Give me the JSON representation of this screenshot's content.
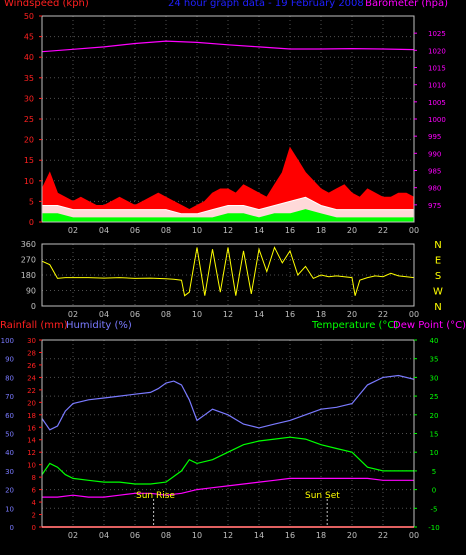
{
  "header": {
    "title": "24 hour graph data - 19 February 2008"
  },
  "colors": {
    "background": "#000000",
    "frame": "#c0c0c0",
    "grid": "#505050",
    "wind_axis": "#ff2020",
    "barometer_axis": "#ff00ff",
    "title": "#2020ff",
    "gust": "#ff0000",
    "wind_avg": "#ffffff",
    "wind_low": "#00ff00",
    "barometer": "#ff00ff",
    "direction": "#ffff00",
    "compass_labels": "#ffff00",
    "rainfall": "#ff2020",
    "humidity": "#7a7aff",
    "temperature": "#00ff00",
    "dewpoint": "#ff00ff",
    "rain_line": "#ff0000",
    "sun_label": "#ffff00"
  },
  "chart_data": [
    {
      "type": "line",
      "name": "wind-barometer-panel",
      "ylabel": "Windspeed (kph)",
      "y2label": "Barometer (hpa)",
      "ylim": [
        0,
        50
      ],
      "yticks": [
        "0",
        "5",
        "10",
        "15",
        "20",
        "25",
        "30",
        "35",
        "40",
        "45",
        "50"
      ],
      "y2lim": [
        970,
        1030
      ],
      "y2ticks": [
        "975",
        "980",
        "985",
        "990",
        "995",
        "1000",
        "1005",
        "1010",
        "1015",
        "1020",
        "1025"
      ],
      "xlim": [
        0,
        24
      ],
      "xticks": [
        "02",
        "04",
        "06",
        "08",
        "10",
        "12",
        "14",
        "16",
        "18",
        "20",
        "22",
        "00"
      ],
      "xtick_values": [
        2,
        4,
        6,
        8,
        10,
        12,
        14,
        16,
        18,
        20,
        22,
        24
      ],
      "series": [
        {
          "name": "Barometer",
          "axis": "y2",
          "x": [
            0,
            2,
            4,
            6,
            8,
            10,
            12,
            14,
            16,
            18,
            20,
            22,
            24
          ],
          "values": [
            1019.6,
            1020.3,
            1021.0,
            1022.0,
            1022.7,
            1022.3,
            1021.6,
            1021.0,
            1020.4,
            1020.4,
            1020.5,
            1020.4,
            1020.2
          ]
        },
        {
          "name": "Gust",
          "axis": "y",
          "x": [
            0,
            0.5,
            1,
            1.5,
            2,
            2.5,
            3,
            3.5,
            4,
            4.5,
            5,
            5.5,
            6,
            6.5,
            7,
            7.5,
            8,
            8.5,
            9,
            9.5,
            10,
            10.5,
            11,
            11.5,
            12,
            12.5,
            13,
            13.5,
            14,
            14.5,
            15,
            15.5,
            16,
            16.5,
            17,
            17.5,
            18,
            18.5,
            19,
            19.5,
            20,
            20.5,
            21,
            21.5,
            22,
            22.5,
            23,
            23.5,
            24
          ],
          "values": [
            8,
            12,
            7,
            6,
            5,
            6,
            5,
            4,
            4,
            5,
            6,
            5,
            4,
            5,
            6,
            7,
            6,
            5,
            4,
            3,
            4,
            5,
            7,
            8,
            8,
            7,
            9,
            8,
            7,
            6,
            9,
            12,
            18,
            15,
            12,
            10,
            8,
            7,
            8,
            9,
            7,
            6,
            8,
            7,
            6,
            6,
            7,
            7,
            6
          ]
        },
        {
          "name": "Average",
          "axis": "y",
          "x": [
            0,
            1,
            2,
            3,
            4,
            5,
            6,
            7,
            8,
            9,
            10,
            11,
            12,
            13,
            14,
            15,
            16,
            17,
            18,
            19,
            20,
            21,
            22,
            23,
            24
          ],
          "values": [
            4,
            4,
            3,
            3,
            3,
            3,
            3,
            3,
            3,
            2,
            2,
            3,
            4,
            4,
            3,
            4,
            5,
            6,
            4,
            3,
            3,
            3,
            3,
            3,
            3
          ]
        },
        {
          "name": "Low",
          "axis": "y",
          "x": [
            0,
            1,
            2,
            3,
            4,
            5,
            6,
            7,
            8,
            9,
            10,
            11,
            12,
            13,
            14,
            15,
            16,
            17,
            18,
            19,
            20,
            21,
            22,
            23,
            24
          ],
          "values": [
            2,
            2,
            1,
            1,
            1,
            1,
            1,
            1,
            1,
            1,
            1,
            1,
            2,
            2,
            1,
            2,
            2,
            3,
            2,
            1,
            1,
            1,
            1,
            1,
            1
          ]
        }
      ]
    },
    {
      "type": "line",
      "name": "wind-direction-panel",
      "ylim": [
        0,
        360
      ],
      "yticks": [
        "0",
        "90",
        "180",
        "270",
        "360"
      ],
      "y2ticks": [
        "N",
        "W",
        "S",
        "E",
        "N"
      ],
      "xlim": [
        0,
        24
      ],
      "xticks": [
        "02",
        "04",
        "06",
        "08",
        "10",
        "12",
        "14",
        "16",
        "18",
        "20",
        "22",
        "00"
      ],
      "xtick_values": [
        2,
        4,
        6,
        8,
        10,
        12,
        14,
        16,
        18,
        20,
        22,
        24
      ],
      "series": [
        {
          "name": "Direction",
          "x": [
            0,
            0.5,
            1,
            1.5,
            2,
            3,
            4,
            5,
            6,
            7,
            8,
            8.5,
            9,
            9.2,
            9.5,
            10,
            10.5,
            11,
            11.5,
            12,
            12.5,
            13,
            13.5,
            14,
            14.5,
            15,
            15.5,
            16,
            16.5,
            17,
            17.5,
            18,
            18.5,
            19,
            19.5,
            20,
            20.2,
            20.5,
            21,
            21.5,
            22,
            22.5,
            23,
            23.5,
            24
          ],
          "values": [
            260,
            240,
            160,
            165,
            165,
            165,
            162,
            165,
            160,
            162,
            158,
            155,
            150,
            60,
            80,
            340,
            60,
            330,
            80,
            340,
            60,
            320,
            70,
            330,
            200,
            340,
            250,
            320,
            180,
            230,
            160,
            180,
            170,
            175,
            170,
            165,
            60,
            150,
            165,
            175,
            170,
            190,
            175,
            170,
            165
          ]
        }
      ]
    },
    {
      "type": "line",
      "name": "temperature-humidity-panel",
      "ylabel": "Rainfall (mm)",
      "ylabel2": "Humidity (%)",
      "y2label": "Temperature (°C)",
      "y2label2": "Dew Point (°C)",
      "ylim": [
        0,
        30
      ],
      "yticks": [
        "0",
        "2",
        "4",
        "6",
        "8",
        "10",
        "12",
        "14",
        "16",
        "18",
        "20",
        "22",
        "24",
        "26",
        "28",
        "30"
      ],
      "humidity_lim": [
        0,
        100
      ],
      "humidity_ticks": [
        "0",
        "10",
        "20",
        "30",
        "40",
        "50",
        "60",
        "70",
        "80",
        "90",
        "100"
      ],
      "y2lim": [
        -10,
        40
      ],
      "y2ticks": [
        "-10",
        "-5",
        "0",
        "5",
        "10",
        "15",
        "20",
        "25",
        "30",
        "35",
        "40"
      ],
      "xlim": [
        0,
        24
      ],
      "xticks": [
        "02",
        "04",
        "06",
        "08",
        "10",
        "12",
        "14",
        "16",
        "18",
        "20",
        "22",
        "00"
      ],
      "xtick_values": [
        2,
        4,
        6,
        8,
        10,
        12,
        14,
        16,
        18,
        20,
        22,
        24
      ],
      "annotations": [
        {
          "label": "Sun Rise",
          "x": 7.2
        },
        {
          "label": "Sun Set",
          "x": 18.4
        }
      ],
      "series": [
        {
          "name": "Humidity",
          "axis": "humidity",
          "x": [
            0,
            0.5,
            1,
            1.5,
            2,
            3,
            4,
            5,
            6,
            7,
            7.5,
            8,
            8.5,
            9,
            9.5,
            10,
            10.5,
            11,
            12,
            13,
            14,
            15,
            16,
            17,
            18,
            19,
            19.5,
            20,
            21,
            22,
            23,
            24
          ],
          "values": [
            58,
            52,
            54,
            62,
            66,
            68,
            69,
            70,
            71,
            72,
            74,
            77,
            78,
            76,
            68,
            57,
            60,
            63,
            60,
            55,
            53,
            55,
            57,
            60,
            63,
            64,
            65,
            66,
            76,
            80,
            81,
            79
          ]
        },
        {
          "name": "Temperature",
          "axis": "y2",
          "x": [
            0,
            0.5,
            1,
            1.5,
            2,
            3,
            4,
            5,
            6,
            7,
            8,
            9,
            9.5,
            10,
            11,
            12,
            13,
            14,
            15,
            16,
            17,
            18,
            19,
            20,
            21,
            22,
            23,
            24
          ],
          "values": [
            4,
            7,
            6,
            4,
            3,
            2.5,
            2,
            2,
            1.5,
            1.5,
            2,
            5,
            8,
            7,
            8,
            10,
            12,
            13,
            13.5,
            14,
            13.5,
            12,
            11,
            10,
            6,
            5,
            5,
            5
          ]
        },
        {
          "name": "Dew Point",
          "axis": "y2",
          "x": [
            0,
            1,
            2,
            3,
            4,
            5,
            6,
            7,
            8,
            9,
            10,
            11,
            12,
            13,
            14,
            15,
            16,
            17,
            18,
            19,
            20,
            21,
            22,
            23,
            24
          ],
          "values": [
            -2,
            -2,
            -1.5,
            -2,
            -2,
            -1.5,
            -1,
            -1,
            -1.5,
            -1,
            0,
            0.5,
            1,
            1.5,
            2,
            2.5,
            3,
            3,
            3,
            3,
            3,
            3,
            2.5,
            2.5,
            2.5
          ]
        },
        {
          "name": "Rainfall",
          "axis": "y",
          "x": [
            0,
            24
          ],
          "values": [
            0,
            0
          ]
        }
      ]
    }
  ]
}
